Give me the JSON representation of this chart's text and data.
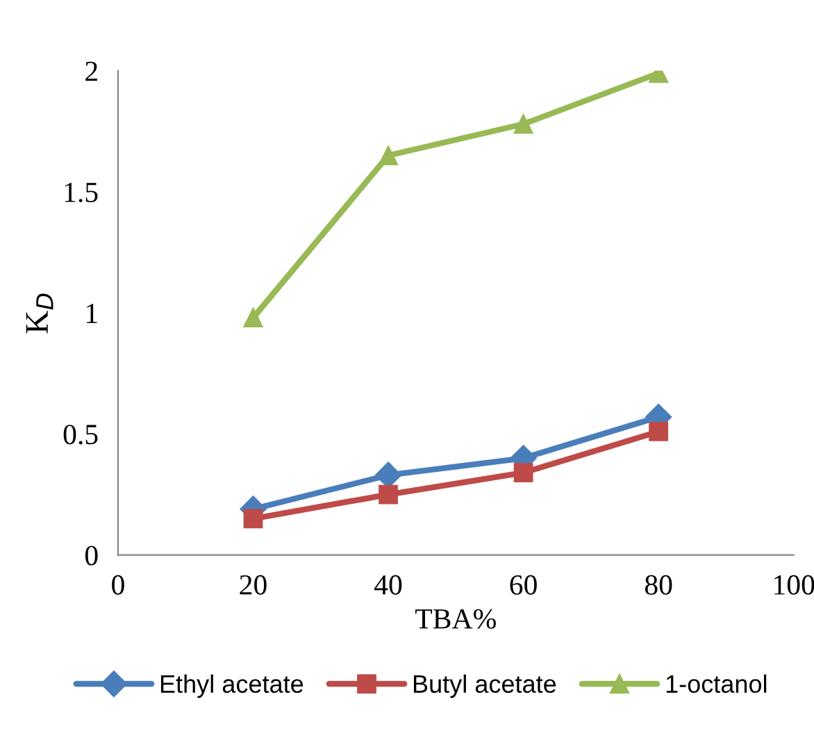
{
  "chart_data": {
    "type": "line",
    "xlabel": "TBA%",
    "ylabel": "K$_{D}$",
    "x": [
      20,
      40,
      60,
      80
    ],
    "series": [
      {
        "name": "Ethyl acetate",
        "color": "#4a7ebb",
        "values": [
          0.19,
          0.33,
          0.4,
          0.57
        ],
        "marker": "diamond"
      },
      {
        "name": "Butyl acetate",
        "color": "#be4b48",
        "values": [
          0.15,
          0.25,
          0.34,
          0.51
        ],
        "marker": "square"
      },
      {
        "name": "1-octanol",
        "color": "#98b954",
        "values": [
          0.98,
          1.65,
          1.78,
          1.99
        ],
        "marker": "triangle"
      }
    ],
    "xlim": [
      0,
      100
    ],
    "xticks": [
      0,
      20,
      40,
      60,
      80,
      100
    ],
    "ylim": [
      0,
      2
    ],
    "yticks": [
      0,
      0.5,
      1,
      1.5,
      2
    ],
    "grid": false,
    "legend": "bottom",
    "line_style": "solid"
  }
}
